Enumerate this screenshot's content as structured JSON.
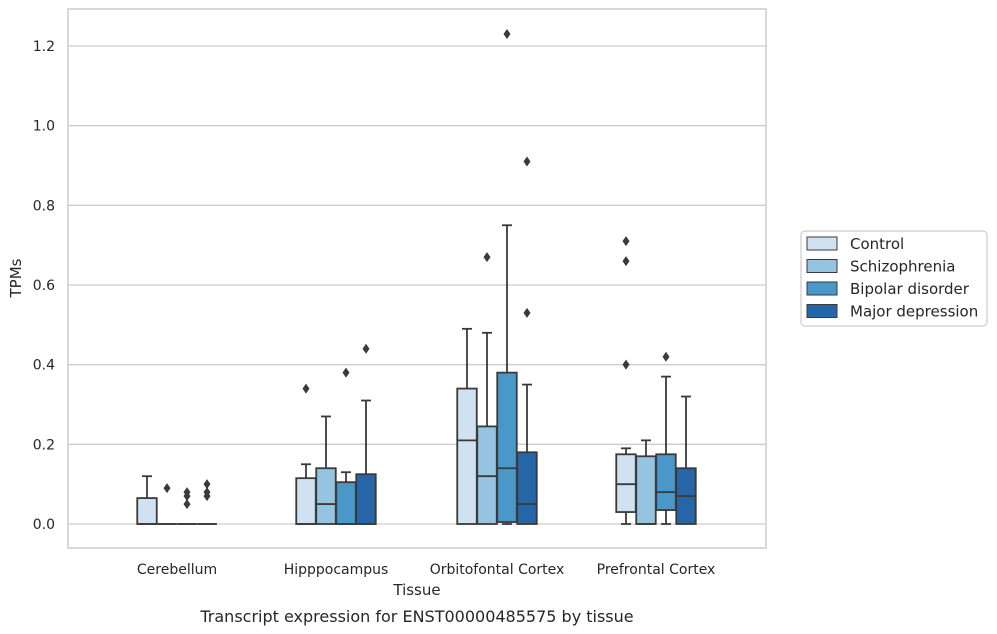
{
  "caption": "Transcript expression for ENST00000485575 by tissue",
  "colors": {
    "Control": "#d0e1f2",
    "Schizophrenia": "#94c4df",
    "Bipolar disorder": "#4a98c9",
    "Major depression": "#2565a8",
    "box_edge": "#3a3a3a",
    "grid": "#cccccc",
    "frame": "#cccccc"
  },
  "chart_data": {
    "type": "box",
    "xlabel": "Tissue",
    "ylabel": "TPMs",
    "ylim": [
      -0.06,
      1.29
    ],
    "yticks": [
      "0.0",
      "0.2",
      "0.4",
      "0.6",
      "0.8",
      "1.0",
      "1.2"
    ],
    "grid": "horizontal",
    "categories": [
      "Cerebellum",
      "Hipppocampus",
      "Orbitofontal Cortex",
      "Prefrontal Cortex"
    ],
    "legend": {
      "position": "right",
      "entries": [
        "Control",
        "Schizophrenia",
        "Bipolar disorder",
        "Major depression"
      ]
    },
    "series": [
      {
        "name": "Control",
        "boxes": [
          {
            "min": 0.0,
            "q1": 0.0,
            "median": 0.0,
            "q3": 0.065,
            "max": 0.12,
            "outliers": []
          },
          {
            "min": 0.0,
            "q1": 0.0,
            "median": 0.0,
            "q3": 0.115,
            "max": 0.15,
            "outliers": [
              0.34
            ]
          },
          {
            "min": 0.0,
            "q1": 0.0,
            "median": 0.21,
            "q3": 0.34,
            "max": 0.49,
            "outliers": []
          },
          {
            "min": 0.0,
            "q1": 0.03,
            "median": 0.1,
            "q3": 0.175,
            "max": 0.19,
            "outliers": [
              0.4,
              0.66,
              0.71
            ]
          }
        ]
      },
      {
        "name": "Schizophrenia",
        "boxes": [
          {
            "min": 0.0,
            "q1": 0.0,
            "median": 0.0,
            "q3": 0.0,
            "max": 0.0,
            "outliers": [
              0.09
            ]
          },
          {
            "min": 0.0,
            "q1": 0.0,
            "median": 0.05,
            "q3": 0.14,
            "max": 0.27,
            "outliers": []
          },
          {
            "min": 0.0,
            "q1": 0.0,
            "median": 0.12,
            "q3": 0.245,
            "max": 0.48,
            "outliers": [
              0.67
            ]
          },
          {
            "min": 0.0,
            "q1": 0.0,
            "median": 0.0,
            "q3": 0.17,
            "max": 0.21,
            "outliers": []
          }
        ]
      },
      {
        "name": "Bipolar disorder",
        "boxes": [
          {
            "min": 0.0,
            "q1": 0.0,
            "median": 0.0,
            "q3": 0.0,
            "max": 0.0,
            "outliers": [
              0.05,
              0.07,
              0.08
            ]
          },
          {
            "min": 0.0,
            "q1": 0.0,
            "median": 0.0,
            "q3": 0.105,
            "max": 0.13,
            "outliers": [
              0.38
            ]
          },
          {
            "min": 0.0,
            "q1": 0.005,
            "median": 0.14,
            "q3": 0.38,
            "max": 0.75,
            "outliers": [
              1.23
            ]
          },
          {
            "min": 0.0,
            "q1": 0.035,
            "median": 0.08,
            "q3": 0.175,
            "max": 0.37,
            "outliers": [
              0.42
            ]
          }
        ]
      },
      {
        "name": "Major depression",
        "boxes": [
          {
            "min": 0.0,
            "q1": 0.0,
            "median": 0.0,
            "q3": 0.0,
            "max": 0.0,
            "outliers": [
              0.07,
              0.08,
              0.1
            ]
          },
          {
            "min": 0.0,
            "q1": 0.0,
            "median": 0.0,
            "q3": 0.125,
            "max": 0.31,
            "outliers": [
              0.44
            ]
          },
          {
            "min": 0.0,
            "q1": 0.0,
            "median": 0.05,
            "q3": 0.18,
            "max": 0.35,
            "outliers": [
              0.53,
              0.91
            ]
          },
          {
            "min": 0.0,
            "q1": 0.0,
            "median": 0.07,
            "q3": 0.14,
            "max": 0.32,
            "outliers": []
          }
        ]
      }
    ]
  }
}
